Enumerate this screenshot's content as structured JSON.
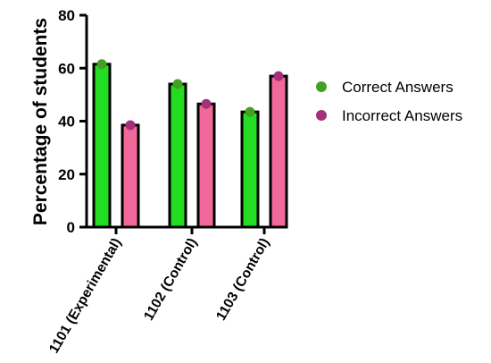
{
  "chart_data": {
    "type": "bar",
    "ylabel": "Percentage of students",
    "xlabel": "",
    "ylim": [
      0,
      80
    ],
    "yticks": [
      0,
      20,
      40,
      60,
      80
    ],
    "categories": [
      "1101 (Experimental)",
      "1102 (Control)",
      "1103 (Control)"
    ],
    "series": [
      {
        "name": "Correct Answers",
        "values": [
          61.5,
          54,
          43.5
        ],
        "bar_color": "#22dd22",
        "dot_color": "#44a020"
      },
      {
        "name": "Incorrect Answers",
        "values": [
          38.5,
          46.5,
          57
        ],
        "bar_color": "#f0699a",
        "dot_color": "#a4307a"
      }
    ],
    "legend_position": "right",
    "grid": false
  }
}
